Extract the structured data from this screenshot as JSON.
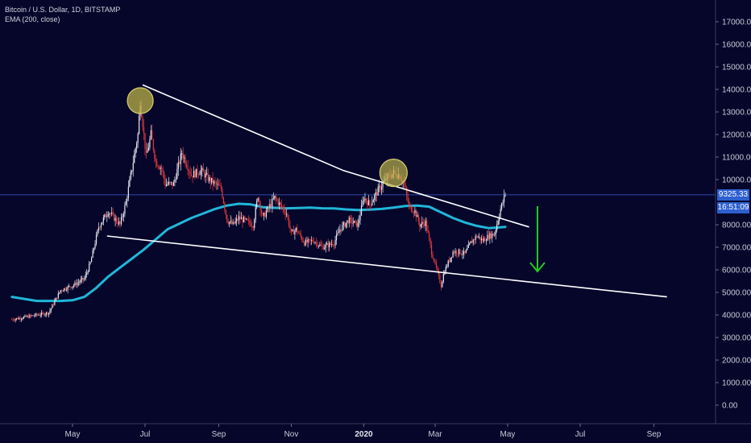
{
  "legend": {
    "line1": "Bitcoin / U.S. Dollar, 1D, BITSTAMP",
    "line2": "EMA (200, close)"
  },
  "price_tags": {
    "last_price": "9325.33",
    "countdown": "16:51:09"
  },
  "colors": {
    "background": "#06062b",
    "up_candle": "#e8e8f0",
    "down_candle": "#e03a3a",
    "ema": "#20b6d8",
    "trendline": "#ffffff",
    "highlight_circle": "#b9b24a",
    "arrow": "#22cc22",
    "price_line": "#3a5bd0",
    "tag_blue": "#2e5fd0"
  },
  "chart_data": {
    "type": "line",
    "title": "Bitcoin / U.S. Dollar, 1D, BITSTAMP",
    "xlabel": "",
    "ylabel": "",
    "ylim": [
      -500,
      18000
    ],
    "grid": false,
    "x_ticks": [
      "May",
      "Jul",
      "Sep",
      "Nov",
      "2020",
      "Mar",
      "May",
      "Jul",
      "Sep"
    ],
    "y_ticks": [
      "0.00",
      "1000.00",
      "2000.00",
      "3000.00",
      "4000.00",
      "5000.00",
      "6000.00",
      "7000.00",
      "8000.00",
      "10000.00",
      "11000.00",
      "12000.00",
      "13000.00",
      "14000.00",
      "15000.00",
      "16000.00",
      "17000.00"
    ],
    "x_tick_values": [
      0,
      61,
      123,
      184,
      245,
      305,
      366,
      427,
      489
    ],
    "x_day_offset_from": "May 1, 2019",
    "series": [
      {
        "name": "BTC/USD",
        "x": [
          -51,
          -35,
          -20,
          -10,
          0,
          10,
          15,
          22,
          30,
          40,
          45,
          50,
          55,
          57,
          62,
          66,
          70,
          75,
          78,
          85,
          92,
          100,
          108,
          115,
          120,
          125,
          130,
          135,
          140,
          148,
          152,
          156,
          160,
          170,
          180,
          184,
          188,
          195,
          203,
          210,
          220,
          225,
          232,
          240,
          245,
          250,
          258,
          265,
          270,
          275,
          279,
          283,
          288,
          292,
          297,
          302,
          310,
          312,
          315,
          320,
          325,
          330,
          335,
          340,
          345,
          350,
          355,
          360,
          364
        ],
        "values": [
          3800,
          3950,
          4100,
          5100,
          5300,
          5600,
          6300,
          7900,
          8600,
          8000,
          9000,
          10500,
          12000,
          13500,
          11000,
          12000,
          10800,
          10500,
          9800,
          9800,
          11200,
          10200,
          10400,
          10000,
          9800,
          9600,
          8200,
          8000,
          8300,
          8100,
          8000,
          9300,
          8300,
          9200,
          8500,
          7600,
          7800,
          7200,
          7300,
          7000,
          7200,
          7800,
          8200,
          8000,
          9200,
          8900,
          9600,
          10100,
          10300,
          10200,
          9800,
          8800,
          8600,
          8000,
          8100,
          6800,
          5300,
          5800,
          6200,
          6800,
          6800,
          6700,
          7200,
          7500,
          7300,
          7500,
          7600,
          8700,
          9325.33
        ]
      },
      {
        "name": "EMA (200, close)",
        "x": [
          -51,
          -30,
          -10,
          0,
          10,
          20,
          30,
          40,
          50,
          60,
          70,
          80,
          90,
          100,
          110,
          120,
          130,
          140,
          150,
          160,
          170,
          180,
          190,
          200,
          210,
          220,
          230,
          240,
          250,
          260,
          270,
          280,
          290,
          300,
          310,
          320,
          330,
          340,
          350,
          364
        ],
        "values": [
          4800,
          4620,
          4620,
          4650,
          4800,
          5200,
          5700,
          6100,
          6500,
          6900,
          7350,
          7800,
          8050,
          8300,
          8500,
          8700,
          8850,
          8930,
          8900,
          8780,
          8750,
          8730,
          8740,
          8760,
          8730,
          8720,
          8680,
          8650,
          8670,
          8700,
          8760,
          8830,
          8850,
          8800,
          8550,
          8300,
          8100,
          7950,
          7850,
          7900
        ]
      },
      {
        "name": "Upper trendline",
        "x": [
          59,
          228,
          384
        ],
        "values": [
          14200,
          10400,
          7900
        ]
      },
      {
        "name": "Lower trendline",
        "x": [
          29,
          500
        ],
        "values": [
          7500,
          4800
        ]
      }
    ]
  }
}
